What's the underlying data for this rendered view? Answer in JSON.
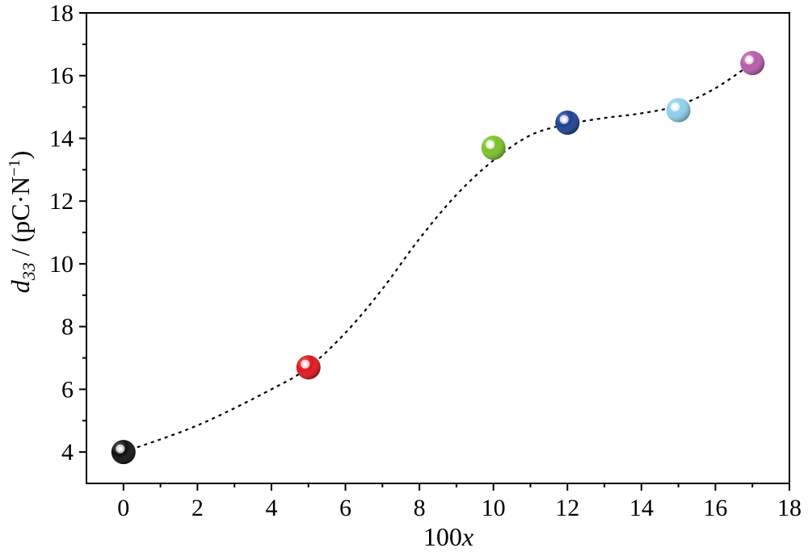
{
  "chart_data": {
    "type": "scatter",
    "title": "",
    "xlabel": {
      "prefix": "100",
      "var": "x"
    },
    "ylabel": {
      "var": "d",
      "sub": "33",
      "text": " / (pC·N",
      "sup": "−1",
      "end": ")"
    },
    "xlim": [
      -1,
      18
    ],
    "ylim": [
      3,
      18
    ],
    "xticks": [
      0,
      2,
      4,
      6,
      8,
      10,
      12,
      14,
      16,
      18
    ],
    "xtick_labels": [
      "0",
      "2",
      "4",
      "6",
      "8",
      "10",
      "12",
      "14",
      "16",
      "18"
    ],
    "yticks": [
      4,
      6,
      8,
      10,
      12,
      14,
      16,
      18
    ],
    "ytick_labels": [
      "4",
      "6",
      "8",
      "10",
      "12",
      "14",
      "16",
      "18"
    ],
    "grid": false,
    "legend": "none",
    "series": [
      {
        "points": [
          {
            "x": 0,
            "y": 4.0,
            "color": "#111111"
          },
          {
            "x": 5,
            "y": 6.7,
            "color": "#e0161c"
          },
          {
            "x": 10,
            "y": 13.7,
            "color": "#7cc22a"
          },
          {
            "x": 12,
            "y": 14.5,
            "color": "#1d3f94"
          },
          {
            "x": 15,
            "y": 14.9,
            "color": "#8ed0ec"
          },
          {
            "x": 17,
            "y": 16.4,
            "color": "#b65ca8"
          }
        ]
      }
    ],
    "trend_line": {
      "style": "dotted",
      "color": "#000000",
      "points": [
        [
          0,
          4.0
        ],
        [
          2,
          4.85
        ],
        [
          4,
          6.0
        ],
        [
          5,
          6.7
        ],
        [
          6,
          7.8
        ],
        [
          7,
          9.2
        ],
        [
          8,
          10.8
        ],
        [
          9,
          12.2
        ],
        [
          10,
          13.3
        ],
        [
          11,
          14.1
        ],
        [
          12,
          14.45
        ],
        [
          13,
          14.65
        ],
        [
          14,
          14.8
        ],
        [
          15,
          15.05
        ],
        [
          16,
          15.6
        ],
        [
          17,
          16.4
        ]
      ]
    }
  }
}
